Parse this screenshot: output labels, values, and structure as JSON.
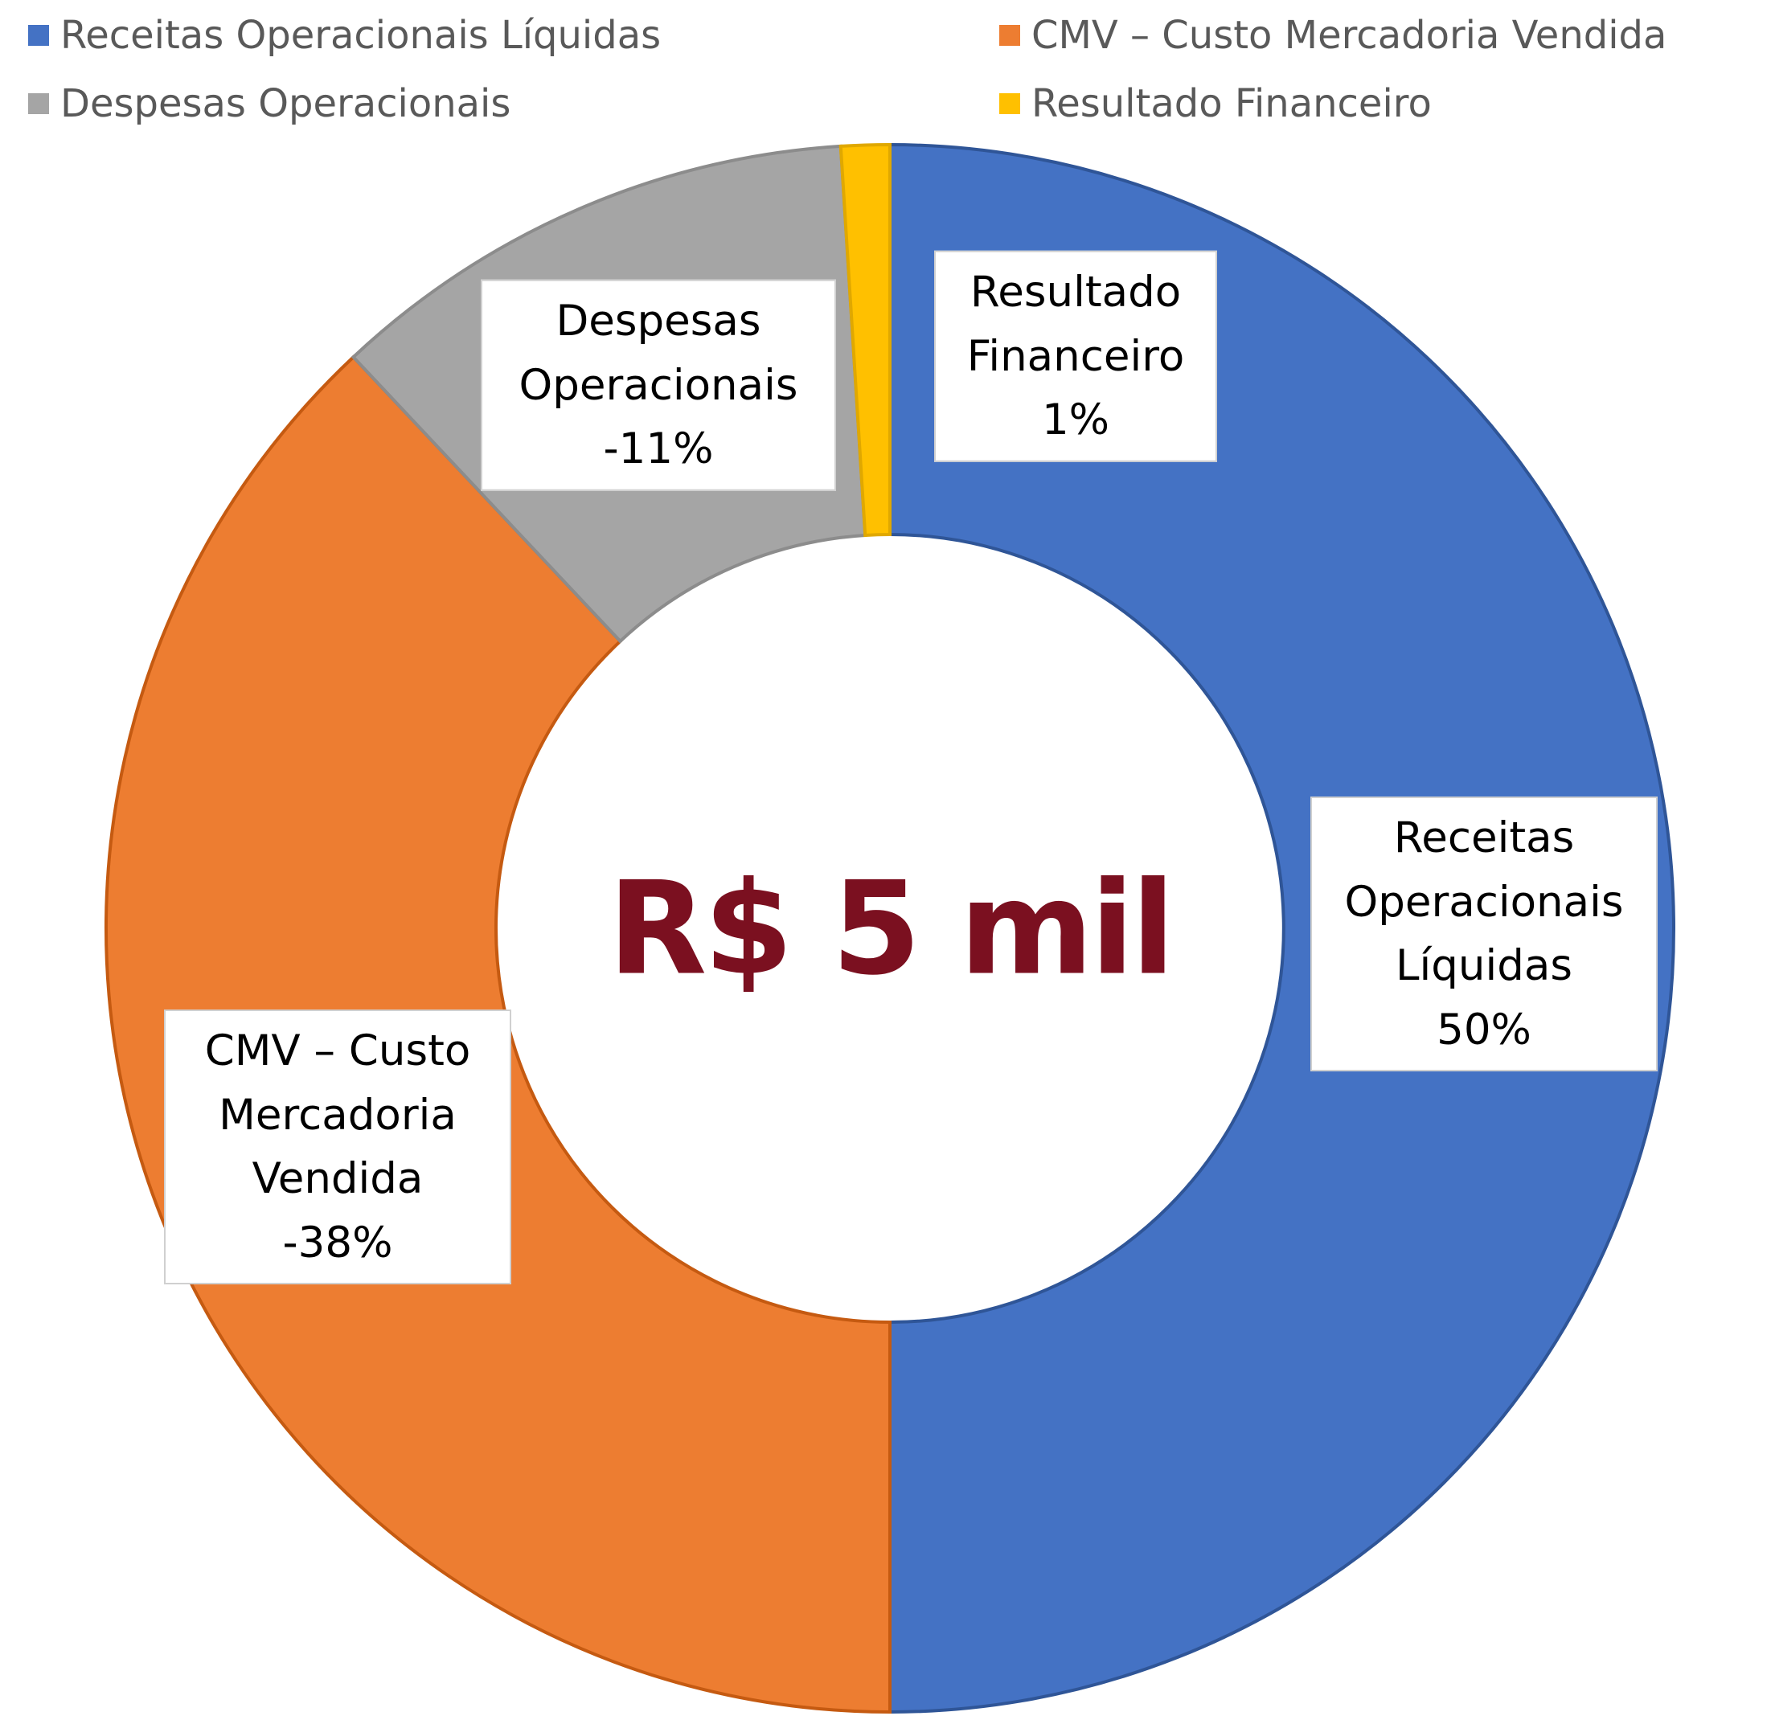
{
  "chart_data": {
    "type": "donut",
    "categories": [
      "Receitas Operacionais Líquidas",
      "CMV – Custo Mercadoria Vendida",
      "Despesas Operacionais",
      "Resultado Financeiro"
    ],
    "values": [
      50,
      -38,
      -11,
      1
    ],
    "value_labels": [
      "50%",
      "-38%",
      "-11%",
      "1%"
    ],
    "colors": [
      "#4472c4",
      "#ed7d31",
      "#a5a5a5",
      "#ffc000"
    ],
    "center_label": "R$ 5 mil",
    "legend": "top"
  }
}
